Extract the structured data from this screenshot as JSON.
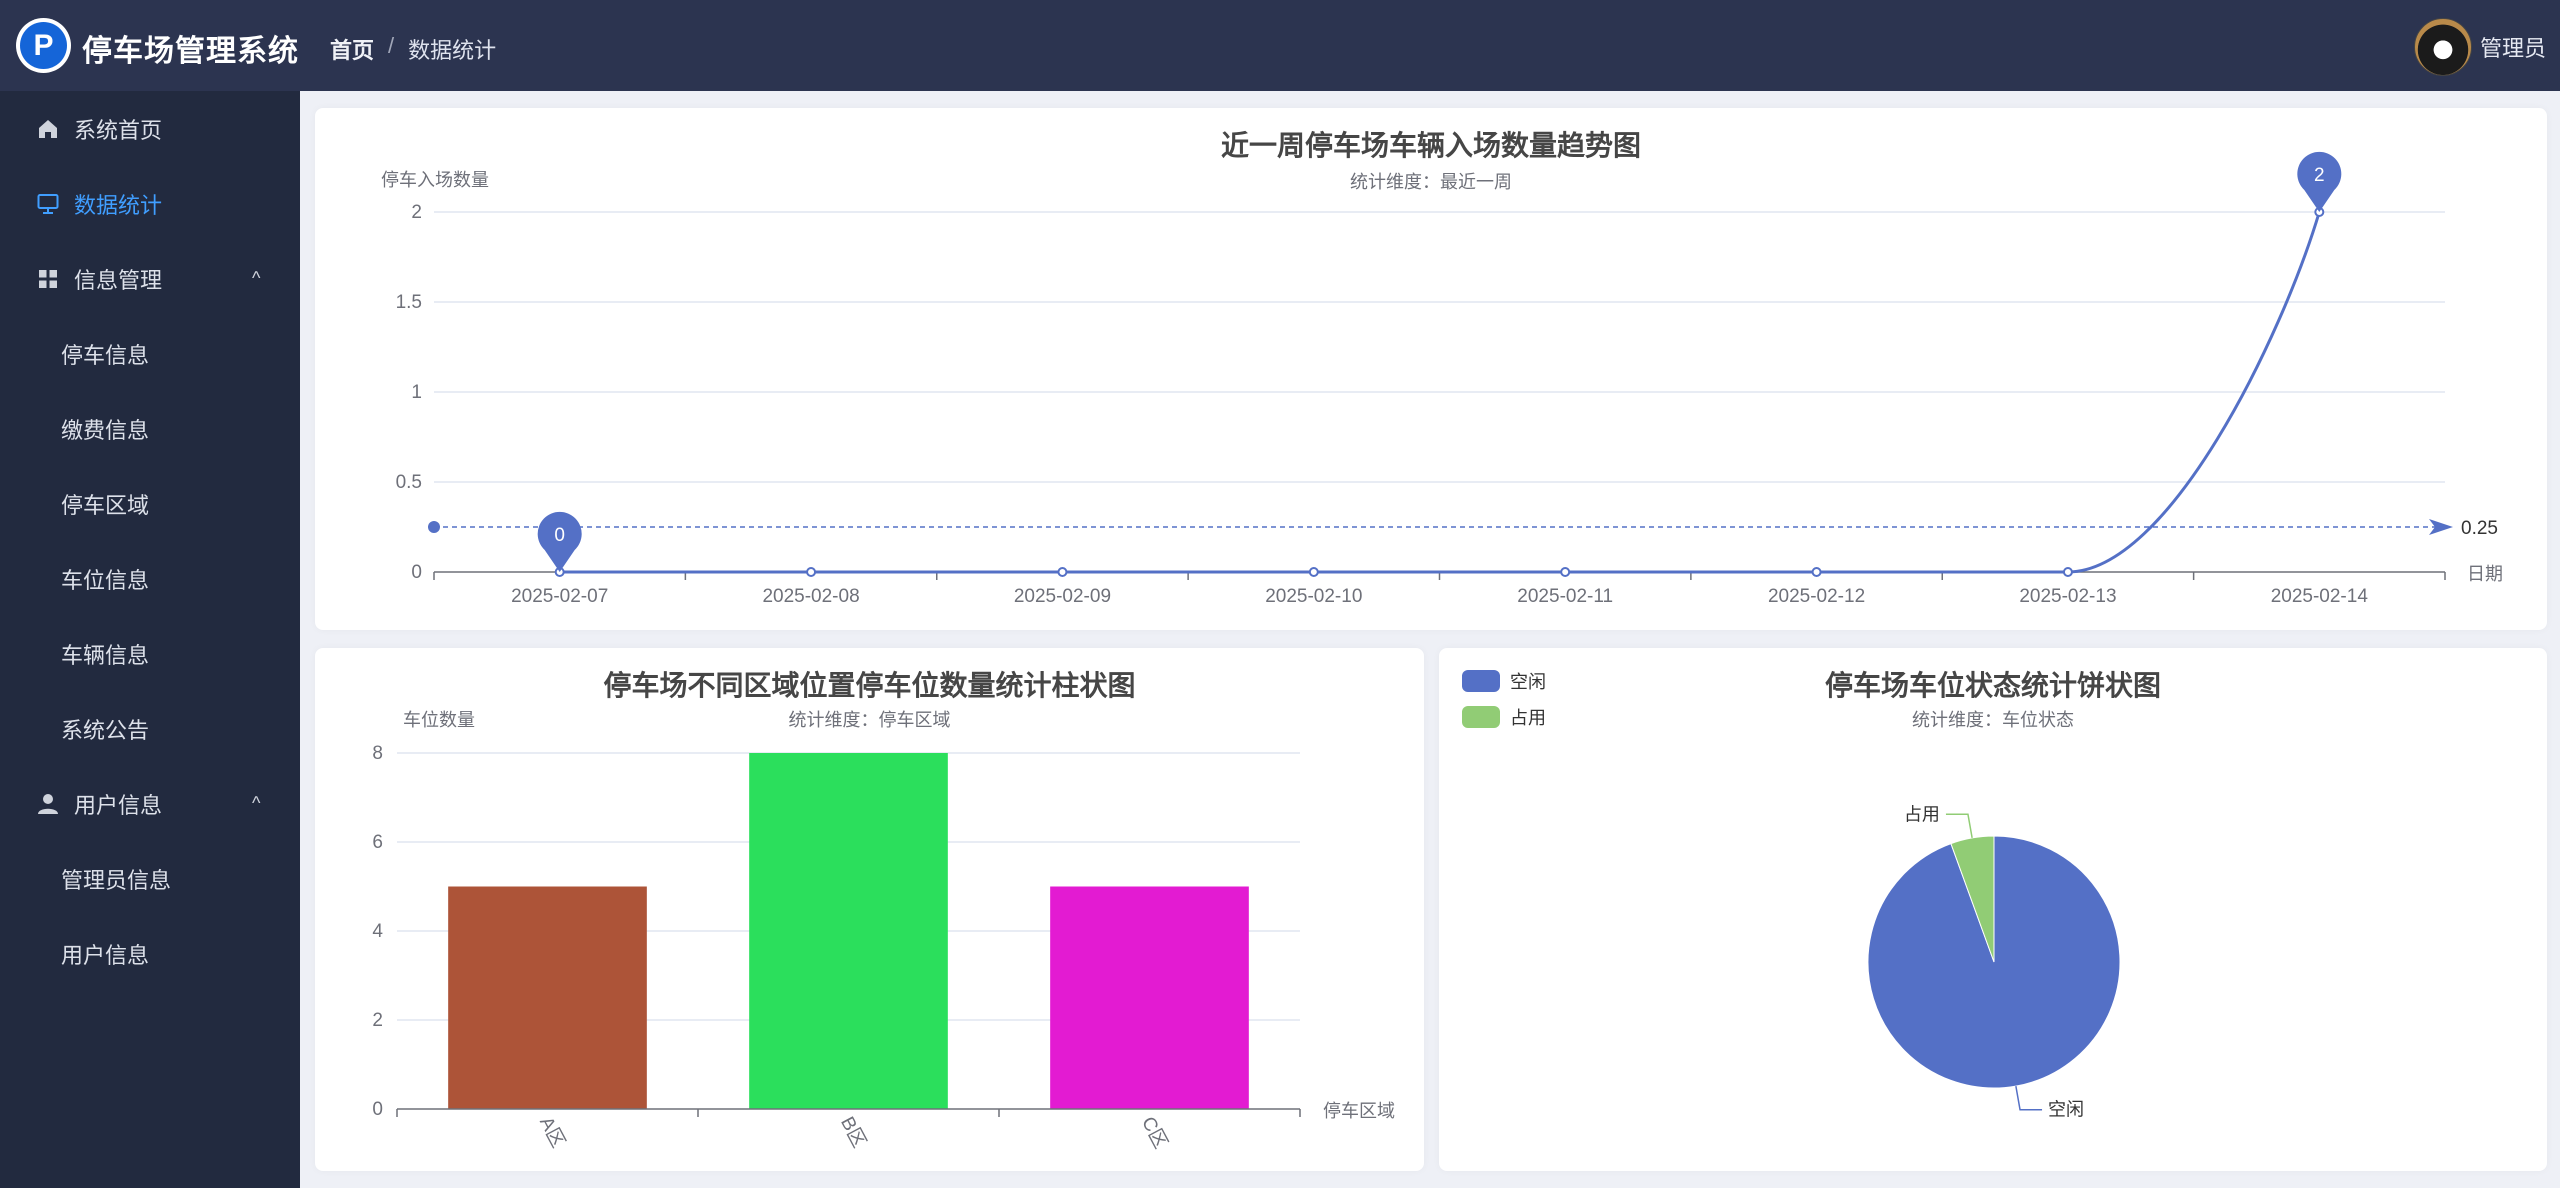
{
  "header": {
    "app_title": "停车场管理系统",
    "logo_letter": "P",
    "breadcrumb": {
      "home": "首页",
      "separator": "/",
      "current": "数据统计"
    },
    "user": {
      "name": "管理员"
    }
  },
  "sidebar": {
    "active_color": "#409eff",
    "items": [
      {
        "label": "系统首页",
        "icon": "home-icon"
      },
      {
        "label": "数据统计",
        "icon": "monitor-icon",
        "active": true
      },
      {
        "label": "信息管理",
        "icon": "grid-icon",
        "expanded": true
      },
      {
        "label": "停车信息"
      },
      {
        "label": "缴费信息"
      },
      {
        "label": "停车区域"
      },
      {
        "label": "车位信息"
      },
      {
        "label": "车辆信息"
      },
      {
        "label": "系统公告"
      },
      {
        "label": "用户信息",
        "icon": "user-icon",
        "expanded": true
      },
      {
        "label": "管理员信息"
      },
      {
        "label": "用户信息"
      }
    ],
    "chevron": "^"
  },
  "chart_data": [
    {
      "type": "line",
      "title": "近一周停车场车辆入场数量趋势图",
      "subtitle": "统计维度：最近一周",
      "ylabel": "停车入场数量",
      "xlabel": "日期",
      "categories": [
        "2025-02-07",
        "2025-02-08",
        "2025-02-09",
        "2025-02-10",
        "2025-02-11",
        "2025-02-12",
        "2025-02-13",
        "2025-02-14"
      ],
      "values": [
        0,
        0,
        0,
        0,
        0,
        0,
        0,
        2
      ],
      "ylim": [
        0,
        2
      ],
      "yticks": [
        "0",
        "0.5",
        "1",
        "1.5",
        "2"
      ],
      "smooth": true,
      "grid": true,
      "color": "#5470c6",
      "mark_points": [
        {
          "type": "max",
          "label": "2"
        },
        {
          "type": "min",
          "label": "0"
        }
      ],
      "mark_line": {
        "type": "average",
        "value": 0.25,
        "label": "0.25"
      }
    },
    {
      "type": "bar",
      "title": "停车场不同区域位置停车位数量统计柱状图",
      "subtitle": "统计维度：停车区域",
      "ylabel": "车位数量",
      "xlabel": "停车区域",
      "categories": [
        "A区",
        "B区",
        "C区"
      ],
      "values": [
        5,
        8,
        5
      ],
      "colors": [
        "#ad5438",
        "#2bdf5c",
        "#e31bd2"
      ],
      "ylim": [
        0,
        8
      ],
      "yticks": [
        "0",
        "2",
        "4",
        "6",
        "8"
      ],
      "grid": true
    },
    {
      "type": "pie",
      "title": "停车场车位状态统计饼状图",
      "subtitle": "统计维度：车位状态",
      "legend_position": "top-left",
      "slices": [
        {
          "name": "空闲",
          "value": 17,
          "color": "#5470c6"
        },
        {
          "name": "占用",
          "value": 1,
          "color": "#91cc75"
        }
      ]
    }
  ]
}
